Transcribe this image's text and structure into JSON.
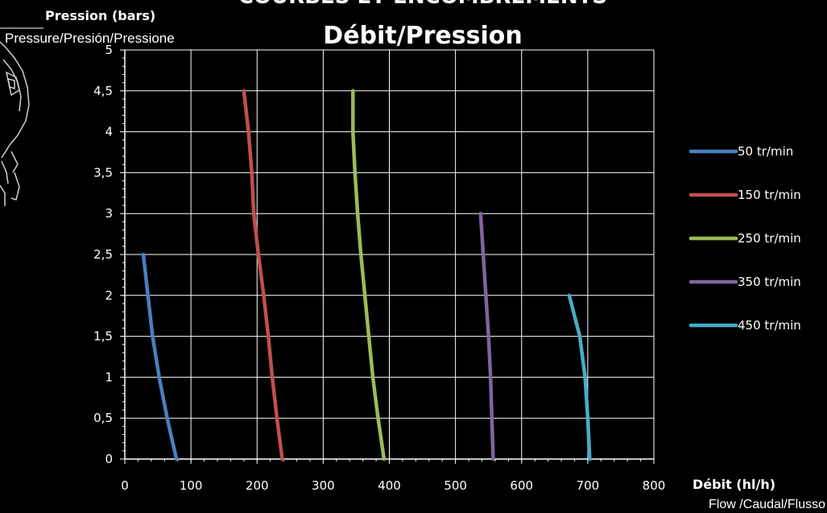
{
  "chart_data": {
    "type": "line",
    "title_partial": "COURBES ET ENCOMBREMENTS",
    "title": "Débit/Pression",
    "ylabel": "Pression (bars)",
    "ylabel_sub": "Pressure/Presión/Pressione",
    "xlabel": "Débit (hl/h)",
    "xlabel_sub": "Flow /Caudal/Flusso",
    "xlim": [
      0,
      800
    ],
    "ylim": [
      0,
      5
    ],
    "x_ticks": [
      "0",
      "100",
      "200",
      "300",
      "400",
      "500",
      "600",
      "700",
      "800"
    ],
    "y_ticks": [
      "0",
      "0,5",
      "1",
      "1,5",
      "2",
      "2,5",
      "3",
      "3,5",
      "4",
      "4,5",
      "5"
    ],
    "grid": true,
    "legend_position": "right",
    "series": [
      {
        "name": "50 tr/min",
        "color": "#4a7fc1",
        "points": [
          [
            28,
            2.5
          ],
          [
            35,
            2.0
          ],
          [
            42,
            1.5
          ],
          [
            52,
            1.0
          ],
          [
            64,
            0.5
          ],
          [
            78,
            0.0
          ]
        ]
      },
      {
        "name": "150 tr/min",
        "color": "#c0504d",
        "points": [
          [
            180,
            4.5
          ],
          [
            187,
            4.0
          ],
          [
            192,
            3.5
          ],
          [
            195,
            3.0
          ],
          [
            202,
            2.5
          ],
          [
            210,
            2.0
          ],
          [
            217,
            1.5
          ],
          [
            223,
            1.0
          ],
          [
            230,
            0.5
          ],
          [
            238,
            0.0
          ]
        ]
      },
      {
        "name": "250 tr/min",
        "color": "#9bbb59",
        "points": [
          [
            345,
            4.5
          ],
          [
            345,
            4.0
          ],
          [
            348,
            3.5
          ],
          [
            352,
            3.0
          ],
          [
            357,
            2.5
          ],
          [
            363,
            2.0
          ],
          [
            369,
            1.5
          ],
          [
            375,
            1.0
          ],
          [
            383,
            0.5
          ],
          [
            392,
            0.0
          ]
        ]
      },
      {
        "name": "350 tr/min",
        "color": "#8064a2",
        "points": [
          [
            538,
            3.0
          ],
          [
            542,
            2.5
          ],
          [
            546,
            2.0
          ],
          [
            550,
            1.5
          ],
          [
            553,
            1.0
          ],
          [
            555,
            0.5
          ],
          [
            557,
            0.0
          ]
        ]
      },
      {
        "name": "450 tr/min",
        "color": "#4bacc6",
        "points": [
          [
            672,
            2.0
          ],
          [
            688,
            1.5
          ],
          [
            696,
            1.0
          ],
          [
            700,
            0.5
          ],
          [
            703,
            0.0
          ]
        ]
      }
    ]
  },
  "colors": {
    "background": "#000000",
    "grid": "#ffffff",
    "text": "#ffffff"
  },
  "decoration": {
    "icon": "pump-sketch-icon"
  }
}
